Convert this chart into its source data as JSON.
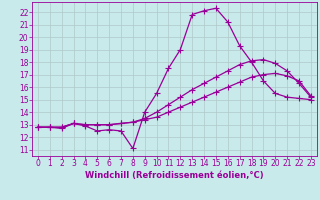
{
  "background_color": "#c8eaea",
  "grid_color": "#b0c8c8",
  "line_color": "#990099",
  "marker": "+",
  "markersize": 4,
  "linewidth": 0.9,
  "xlabel": "Windchill (Refroidissement éolien,°C)",
  "xlabel_fontsize": 6.0,
  "tick_fontsize": 5.5,
  "xlim": [
    -0.5,
    23.5
  ],
  "ylim": [
    10.5,
    22.8
  ],
  "yticks": [
    11,
    12,
    13,
    14,
    15,
    16,
    17,
    18,
    19,
    20,
    21,
    22
  ],
  "xticks": [
    0,
    1,
    2,
    3,
    4,
    5,
    6,
    7,
    8,
    9,
    10,
    11,
    12,
    13,
    14,
    15,
    16,
    17,
    18,
    19,
    20,
    21,
    22,
    23
  ],
  "series": [
    {
      "x": [
        0,
        1,
        2,
        3,
        4,
        5,
        6,
        7,
        8,
        9,
        10,
        11,
        12,
        13,
        14,
        15,
        16,
        17,
        18,
        19,
        20,
        21,
        22,
        23
      ],
      "y": [
        12.8,
        12.8,
        12.7,
        13.1,
        12.9,
        12.5,
        12.6,
        12.5,
        11.1,
        14.0,
        15.5,
        17.5,
        19.0,
        21.8,
        22.1,
        22.3,
        21.2,
        19.3,
        18.0,
        16.5,
        15.5,
        15.2,
        15.1,
        15.0
      ]
    },
    {
      "x": [
        0,
        1,
        2,
        3,
        4,
        5,
        6,
        7,
        8,
        9,
        10,
        11,
        12,
        13,
        14,
        15,
        16,
        17,
        18,
        19,
        20,
        21,
        22,
        23
      ],
      "y": [
        12.8,
        12.8,
        12.8,
        13.1,
        13.0,
        13.0,
        13.0,
        13.1,
        13.2,
        13.4,
        13.6,
        14.0,
        14.4,
        14.8,
        15.2,
        15.6,
        16.0,
        16.4,
        16.8,
        17.0,
        17.1,
        16.9,
        16.5,
        15.3
      ]
    },
    {
      "x": [
        0,
        1,
        2,
        3,
        4,
        5,
        6,
        7,
        8,
        9,
        10,
        11,
        12,
        13,
        14,
        15,
        16,
        17,
        18,
        19,
        20,
        21,
        22,
        23
      ],
      "y": [
        12.8,
        12.8,
        12.8,
        13.1,
        13.0,
        13.0,
        13.0,
        13.1,
        13.2,
        13.5,
        14.0,
        14.6,
        15.2,
        15.8,
        16.3,
        16.8,
        17.3,
        17.8,
        18.1,
        18.2,
        17.9,
        17.3,
        16.3,
        15.2
      ]
    }
  ]
}
